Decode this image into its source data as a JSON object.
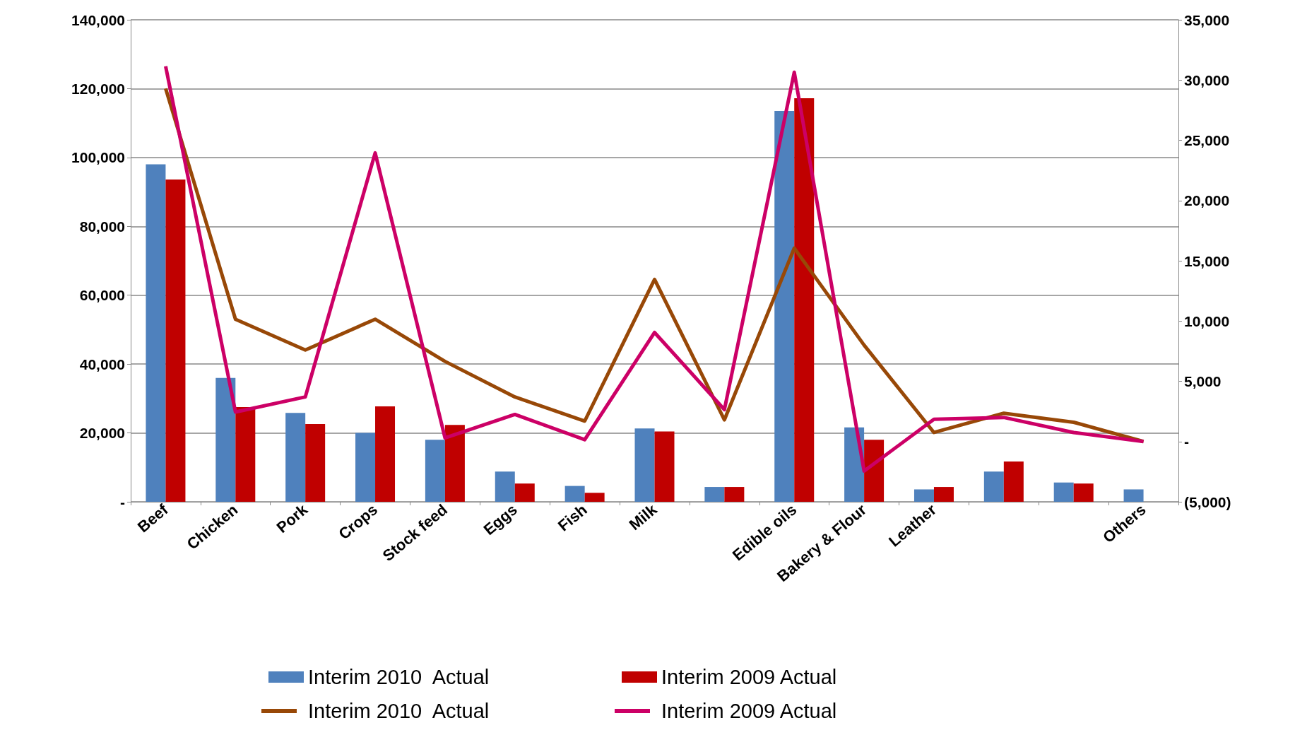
{
  "chart_data": {
    "type": "bar",
    "categories": [
      "Beef",
      "Chicken",
      "Pork",
      "Crops",
      "Stock feed",
      "Eggs",
      "Fish",
      "Milk",
      null,
      "Edible oils",
      "Bakery & Flour",
      "Leather",
      null,
      null,
      "Others"
    ],
    "series": [
      {
        "name": "Interim 2010  Actual",
        "color": "#4f81bd",
        "values": [
          98000,
          36000,
          25800,
          20000,
          18000,
          8800,
          4600,
          21300,
          4300,
          113500,
          21600,
          3600,
          8800,
          5600,
          3600
        ]
      },
      {
        "name": "Interim 2009 Actual",
        "color": "#c00000",
        "values": [
          93600,
          27500,
          22600,
          27700,
          22300,
          5300,
          2600,
          20400,
          4300,
          117200,
          18000,
          4300,
          11700,
          5300,
          null
        ]
      },
      {
        "name": "Interim 2010  Actual",
        "type": "line",
        "axis": "y2",
        "color": "#984807",
        "values": [
          29300,
          10150,
          7600,
          10150,
          6650,
          3700,
          1700,
          13450,
          1800,
          16050,
          8000,
          750,
          2350,
          1600,
          0
        ]
      },
      {
        "name": "Interim 2009 Actual",
        "type": "line",
        "axis": "y2",
        "color": "#cc0066",
        "values": [
          31150,
          2450,
          3700,
          23950,
          300,
          2250,
          150,
          9050,
          2650,
          30650,
          -2450,
          1850,
          2000,
          750,
          0
        ]
      }
    ],
    "ylim": [
      0,
      140000
    ],
    "yticks": [
      {
        "value": 0,
        "label": "-"
      },
      {
        "value": 20000,
        "label": "20,000"
      },
      {
        "value": 40000,
        "label": "40,000"
      },
      {
        "value": 60000,
        "label": "60,000"
      },
      {
        "value": 80000,
        "label": "80,000"
      },
      {
        "value": 100000,
        "label": "100,000"
      },
      {
        "value": 120000,
        "label": "120,000"
      },
      {
        "value": 140000,
        "label": "140,000"
      }
    ],
    "y2lim": [
      -5000,
      35000
    ],
    "y2ticks": [
      {
        "value": -5000,
        "label": "(5,000)"
      },
      {
        "value": 0,
        "label": "-"
      },
      {
        "value": 5000,
        "label": "5,000"
      },
      {
        "value": 10000,
        "label": "10,000"
      },
      {
        "value": 15000,
        "label": "15,000"
      },
      {
        "value": 20000,
        "label": "20,000"
      },
      {
        "value": 25000,
        "label": "25,000"
      },
      {
        "value": 30000,
        "label": "30,000"
      },
      {
        "value": 35000,
        "label": "35,000"
      }
    ],
    "grid": "y",
    "legend": "bottom",
    "marker": "none",
    "line_style": "solid"
  }
}
